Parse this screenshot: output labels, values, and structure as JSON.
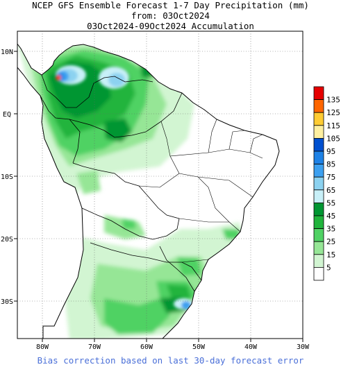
{
  "title": {
    "line1": "NCEP GFS Ensemble Forecast 1-7 Day Precipitation (mm)",
    "line2": "from: 03Oct2024",
    "line3": "03Oct2024-09Oct2024 Accumulation"
  },
  "axes": {
    "lon_labels": [
      "80W",
      "70W",
      "60W",
      "50W",
      "40W",
      "30W"
    ],
    "lat_labels": [
      "10N",
      "EQ",
      "10S",
      "20S",
      "30S"
    ]
  },
  "legend": {
    "items": [
      {
        "label": "135",
        "color": "#e60000"
      },
      {
        "label": "125",
        "color": "#ff6600"
      },
      {
        "label": "115",
        "color": "#ffcc33"
      },
      {
        "label": "105",
        "color": "#fff0a0"
      },
      {
        "label": "95",
        "color": "#0050d0"
      },
      {
        "label": "85",
        "color": "#1e82e6"
      },
      {
        "label": "75",
        "color": "#3ca0f0"
      },
      {
        "label": "65",
        "color": "#8cd2f0"
      },
      {
        "label": "55",
        "color": "#c8f0f8"
      },
      {
        "label": "45",
        "color": "#009632"
      },
      {
        "label": "35",
        "color": "#20b43c"
      },
      {
        "label": "25",
        "color": "#50d264"
      },
      {
        "label": "15",
        "color": "#96e696"
      },
      {
        "label": "5",
        "color": "#d2f5d2"
      },
      {
        "label": "",
        "color": "#ffffff"
      }
    ]
  },
  "footer": "Bias correction based on last 30-day forecast error"
}
